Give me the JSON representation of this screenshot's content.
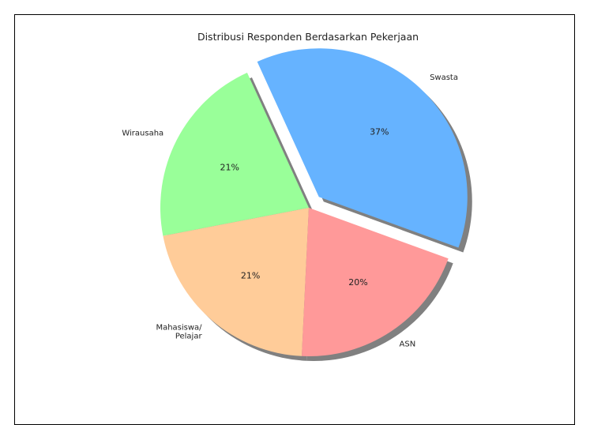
{
  "chart_data": {
    "type": "pie",
    "title": "Distribusi Responden Berdasarkan Pekerjaan",
    "slices": [
      {
        "label": "Swasta",
        "value": 37,
        "pct_label": "37%",
        "color": "#66b3ff",
        "explode": true
      },
      {
        "label": "Wirausaha",
        "value": 21,
        "pct_label": "21%",
        "color": "#99ff99",
        "explode": false
      },
      {
        "label": "Mahasiswa/\nPelajar",
        "value": 21,
        "pct_label": "21%",
        "color": "#ffcc99",
        "explode": false
      },
      {
        "label": "ASN",
        "value": 20,
        "pct_label": "20%",
        "color": "#ff9999",
        "explode": false
      }
    ],
    "shadow": true
  }
}
